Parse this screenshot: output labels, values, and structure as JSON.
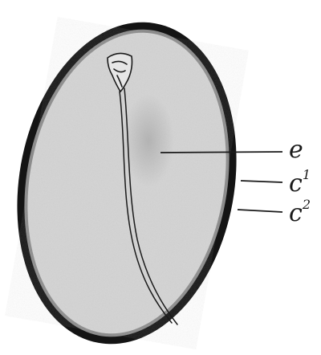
{
  "figure": {
    "colors": {
      "background": "#ffffff",
      "outer_coat": "#141414",
      "inner_coat": "#8c8c8c",
      "interior": "#d4d4d4",
      "lines": "#1a1a1a"
    },
    "labels": {
      "e": {
        "base": "e",
        "sup": ""
      },
      "c1": {
        "base": "c",
        "sup": "1"
      },
      "c2": {
        "base": "c",
        "sup": "2"
      }
    }
  }
}
